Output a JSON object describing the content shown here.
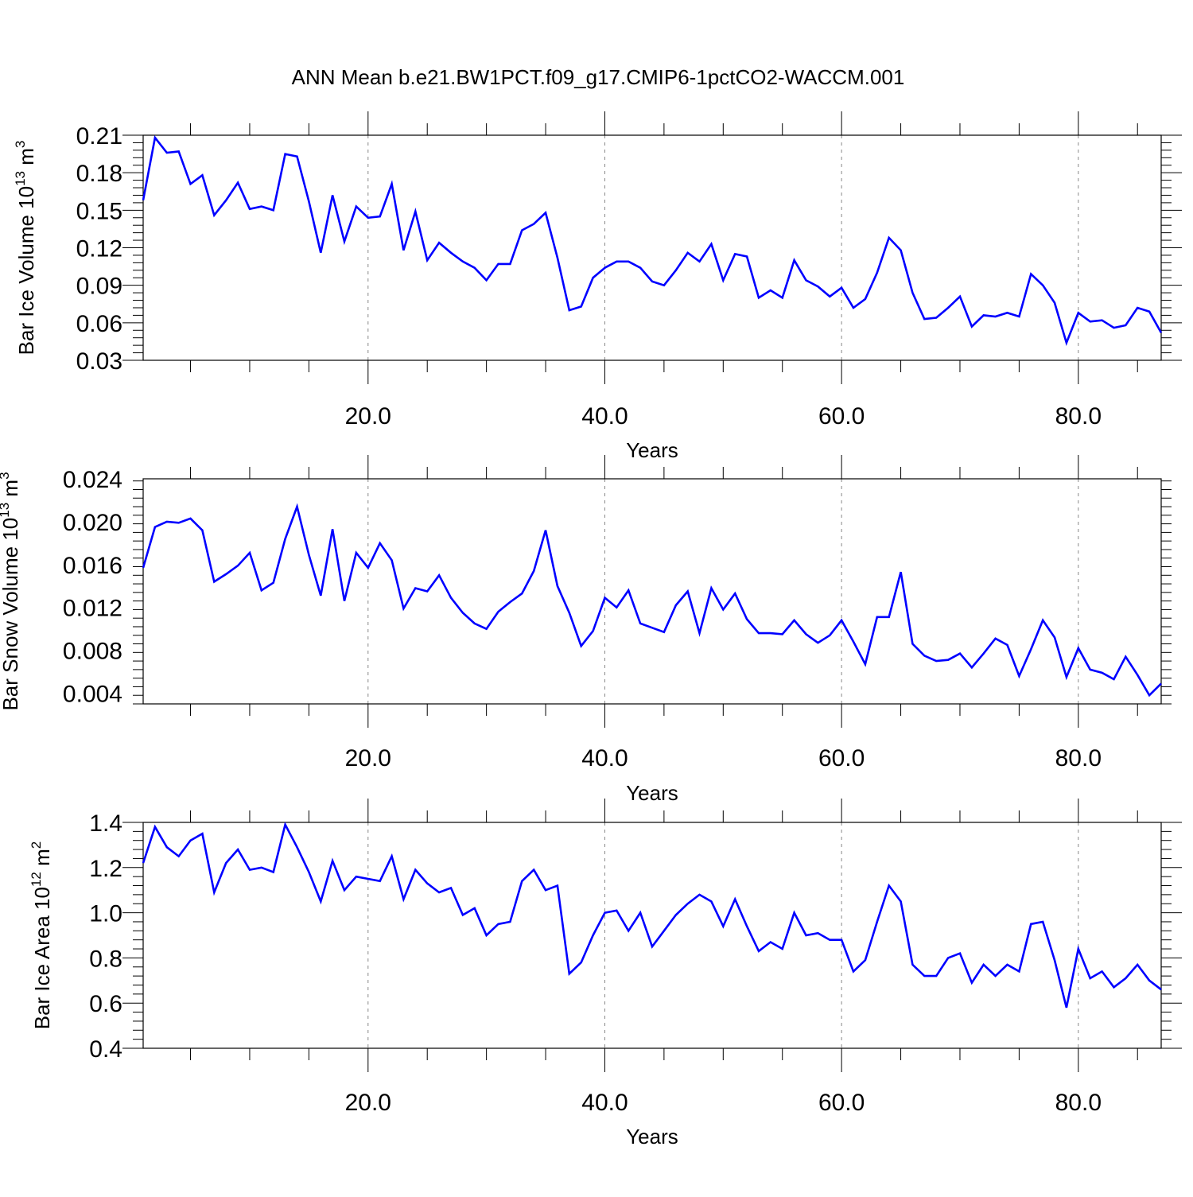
{
  "title": "ANN Mean b.e21.BW1PCT.f09_g17.CMIP6-1pctCO2-WACCM.001",
  "colors": {
    "line": "#0000ff",
    "axis": "#000000",
    "grid": "#888888"
  },
  "chart_data": [
    {
      "type": "line",
      "ylabel": {
        "main": "Bar Ice Volume 10",
        "sup": "13",
        "tail": " m",
        "sup2": "3"
      },
      "xlabel": "Years",
      "xlim": [
        1,
        87
      ],
      "ylim": [
        0.03,
        0.21
      ],
      "x_ticks": [
        20,
        40,
        60,
        80
      ],
      "x_tick_labels": [
        "20.0",
        "40.0",
        "60.0",
        "80.0"
      ],
      "y_ticks": [
        0.03,
        0.06,
        0.09,
        0.12,
        0.15,
        0.18,
        0.21
      ],
      "y_tick_labels": [
        "0.03",
        "0.06",
        "0.09",
        "0.12",
        "0.15",
        "0.18",
        "0.21"
      ],
      "grid": "dashed vertical at major x ticks",
      "series": [
        {
          "x_start": 1,
          "values": [
            0.158,
            0.208,
            0.196,
            0.197,
            0.171,
            0.178,
            0.146,
            0.158,
            0.172,
            0.151,
            0.153,
            0.15,
            0.195,
            0.193,
            0.157,
            0.116,
            0.162,
            0.125,
            0.153,
            0.144,
            0.145,
            0.171,
            0.118,
            0.149,
            0.11,
            0.124,
            0.116,
            0.109,
            0.104,
            0.094,
            0.107,
            0.107,
            0.134,
            0.139,
            0.148,
            0.112,
            0.07,
            0.073,
            0.096,
            0.104,
            0.109,
            0.109,
            0.104,
            0.093,
            0.09,
            0.102,
            0.116,
            0.109,
            0.123,
            0.094,
            0.115,
            0.113,
            0.08,
            0.086,
            0.08,
            0.11,
            0.094,
            0.089,
            0.081,
            0.088,
            0.072,
            0.079,
            0.1,
            0.128,
            0.118,
            0.084,
            0.063,
            0.064,
            0.072,
            0.081,
            0.057,
            0.066,
            0.065,
            0.068,
            0.065,
            0.099,
            0.09,
            0.076,
            0.044,
            0.068,
            0.061,
            0.062,
            0.056,
            0.058,
            0.072,
            0.069,
            0.052
          ]
        }
      ]
    },
    {
      "type": "line",
      "ylabel": {
        "main": "Bar Snow Volume 10",
        "sup": "13",
        "tail": " m",
        "sup2": "3"
      },
      "xlabel": "Years",
      "xlim": [
        1,
        87
      ],
      "ylim": [
        0.003,
        0.024
      ],
      "x_ticks": [
        20,
        40,
        60,
        80
      ],
      "x_tick_labels": [
        "20.0",
        "40.0",
        "60.0",
        "80.0"
      ],
      "y_ticks": [
        0.004,
        0.008,
        0.012,
        0.016,
        0.02,
        0.024
      ],
      "y_tick_labels": [
        "0.004",
        "0.008",
        "0.012",
        "0.016",
        "0.020",
        "0.024"
      ],
      "grid": "dashed vertical at major x ticks",
      "series": [
        {
          "x_start": 1,
          "values": [
            0.0157,
            0.0195,
            0.02,
            0.0199,
            0.0203,
            0.0192,
            0.0144,
            0.0151,
            0.0159,
            0.0171,
            0.0136,
            0.0143,
            0.0184,
            0.0214,
            0.0169,
            0.0131,
            0.0193,
            0.0126,
            0.0171,
            0.0157,
            0.018,
            0.0164,
            0.0119,
            0.0138,
            0.0135,
            0.015,
            0.0129,
            0.0115,
            0.0105,
            0.01,
            0.0116,
            0.0125,
            0.0133,
            0.0154,
            0.0192,
            0.014,
            0.0115,
            0.0084,
            0.0098,
            0.0129,
            0.012,
            0.0136,
            0.0105,
            0.0101,
            0.0097,
            0.0122,
            0.0135,
            0.0096,
            0.0138,
            0.0118,
            0.0133,
            0.0109,
            0.0096,
            0.0096,
            0.0095,
            0.0108,
            0.0095,
            0.0087,
            0.0094,
            0.0108,
            0.0088,
            0.0067,
            0.0111,
            0.0111,
            0.0153,
            0.0086,
            0.0075,
            0.007,
            0.0071,
            0.0077,
            0.0064,
            0.0077,
            0.0091,
            0.0085,
            0.0056,
            0.0081,
            0.0108,
            0.0092,
            0.0055,
            0.0082,
            0.0062,
            0.0059,
            0.0053,
            0.0074,
            0.0057,
            0.0038,
            0.0049
          ]
        }
      ]
    },
    {
      "type": "line",
      "ylabel": {
        "main": "Bar Ice Area 10",
        "sup": "12",
        "tail": " m",
        "sup2": "2"
      },
      "xlabel": "Years",
      "xlim": [
        1,
        87
      ],
      "ylim": [
        0.4,
        1.4
      ],
      "x_ticks": [
        20,
        40,
        60,
        80
      ],
      "x_tick_labels": [
        "20.0",
        "40.0",
        "60.0",
        "80.0"
      ],
      "y_ticks": [
        0.4,
        0.6,
        0.8,
        1.0,
        1.2,
        1.4
      ],
      "y_tick_labels": [
        "0.4",
        "0.6",
        "0.8",
        "1.0",
        "1.2",
        "1.4"
      ],
      "grid": "dashed vertical at major x ticks",
      "series": [
        {
          "x_start": 1,
          "values": [
            1.22,
            1.38,
            1.29,
            1.25,
            1.32,
            1.35,
            1.09,
            1.22,
            1.28,
            1.19,
            1.2,
            1.18,
            1.39,
            1.29,
            1.18,
            1.05,
            1.23,
            1.1,
            1.16,
            1.15,
            1.14,
            1.25,
            1.06,
            1.19,
            1.13,
            1.09,
            1.11,
            0.99,
            1.02,
            0.9,
            0.95,
            0.96,
            1.14,
            1.19,
            1.1,
            1.12,
            0.73,
            0.78,
            0.9,
            1.0,
            1.01,
            0.92,
            1.0,
            0.85,
            0.92,
            0.99,
            1.04,
            1.08,
            1.05,
            0.94,
            1.06,
            0.94,
            0.83,
            0.87,
            0.84,
            1.0,
            0.9,
            0.91,
            0.88,
            0.88,
            0.74,
            0.79,
            0.96,
            1.12,
            1.05,
            0.77,
            0.72,
            0.72,
            0.8,
            0.82,
            0.69,
            0.77,
            0.72,
            0.77,
            0.74,
            0.95,
            0.96,
            0.79,
            0.58,
            0.84,
            0.71,
            0.74,
            0.67,
            0.71,
            0.77,
            0.7,
            0.66
          ]
        }
      ]
    }
  ]
}
